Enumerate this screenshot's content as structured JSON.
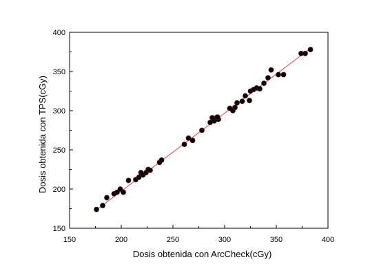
{
  "chart_data": {
    "type": "scatter",
    "title": "",
    "xlabel": "Dosis obtenida con ArcCheck(cGy)",
    "ylabel": "Dosis obtenida con TPS(cGy)",
    "xlim": [
      150,
      400
    ],
    "ylim": [
      150,
      400
    ],
    "xticks": [
      150,
      200,
      250,
      300,
      350,
      400
    ],
    "yticks": [
      150,
      200,
      250,
      300,
      350,
      400
    ],
    "grid": false,
    "legend": "none",
    "colors": {
      "points": "#000000",
      "point_edge": "#6b1a1a",
      "fit_line": "#e04040",
      "axes": "#000000"
    },
    "series": [
      {
        "values": [
          {
            "x": 176,
            "y": 174
          },
          {
            "x": 182,
            "y": 179
          },
          {
            "x": 186,
            "y": 189
          },
          {
            "x": 193,
            "y": 194
          },
          {
            "x": 196,
            "y": 196
          },
          {
            "x": 199,
            "y": 200
          },
          {
            "x": 202,
            "y": 196
          },
          {
            "x": 207,
            "y": 211
          },
          {
            "x": 214,
            "y": 212
          },
          {
            "x": 217,
            "y": 215
          },
          {
            "x": 219,
            "y": 221
          },
          {
            "x": 221,
            "y": 218
          },
          {
            "x": 224,
            "y": 221
          },
          {
            "x": 226,
            "y": 225
          },
          {
            "x": 228,
            "y": 224
          },
          {
            "x": 237,
            "y": 234
          },
          {
            "x": 239,
            "y": 237
          },
          {
            "x": 261,
            "y": 257
          },
          {
            "x": 265,
            "y": 265
          },
          {
            "x": 269,
            "y": 262
          },
          {
            "x": 278,
            "y": 275
          },
          {
            "x": 286,
            "y": 285
          },
          {
            "x": 288,
            "y": 291
          },
          {
            "x": 290,
            "y": 287
          },
          {
            "x": 292,
            "y": 291
          },
          {
            "x": 294,
            "y": 289
          },
          {
            "x": 293,
            "y": 292
          },
          {
            "x": 305,
            "y": 303
          },
          {
            "x": 308,
            "y": 300
          },
          {
            "x": 310,
            "y": 304
          },
          {
            "x": 312,
            "y": 310
          },
          {
            "x": 317,
            "y": 312
          },
          {
            "x": 320,
            "y": 319
          },
          {
            "x": 324,
            "y": 313
          },
          {
            "x": 325,
            "y": 325
          },
          {
            "x": 328,
            "y": 327
          },
          {
            "x": 331,
            "y": 329
          },
          {
            "x": 334,
            "y": 328
          },
          {
            "x": 338,
            "y": 335
          },
          {
            "x": 342,
            "y": 342
          },
          {
            "x": 345,
            "y": 352
          },
          {
            "x": 352,
            "y": 346
          },
          {
            "x": 357,
            "y": 346
          },
          {
            "x": 374,
            "y": 373
          },
          {
            "x": 378,
            "y": 373
          },
          {
            "x": 383,
            "y": 378
          }
        ]
      }
    ],
    "fit_line": {
      "x": [
        175,
        385
      ],
      "y": [
        172.5,
        381.5
      ]
    }
  }
}
